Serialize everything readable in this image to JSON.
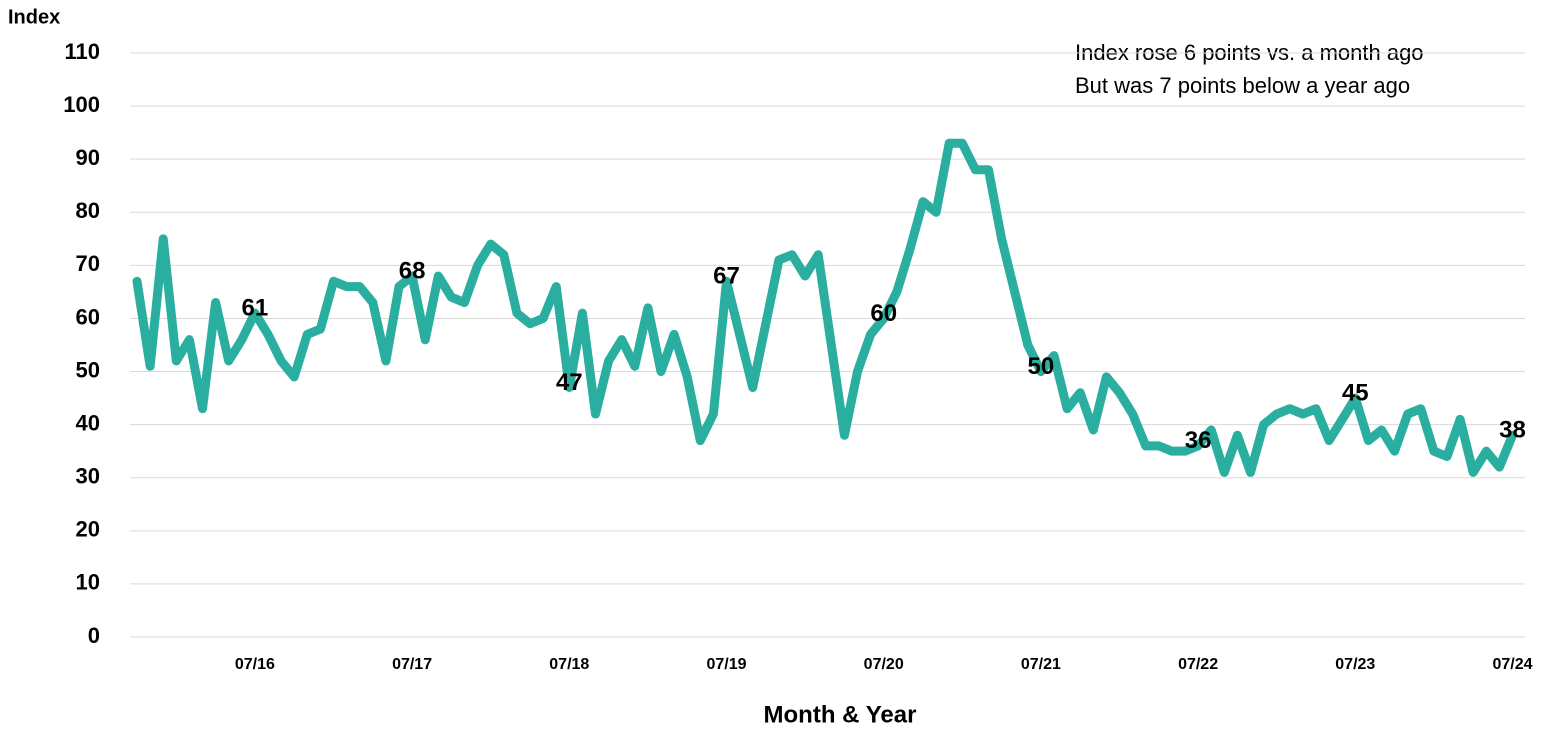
{
  "chart_data": {
    "type": "line",
    "y_label": "Index",
    "x_label": "Month & Year",
    "annotations": [
      "Index rose 6 points vs. a month ago",
      "But was 7 points below a year ago"
    ],
    "categories": [
      null,
      null,
      null,
      null,
      null,
      null,
      null,
      null,
      null,
      "07/16",
      null,
      null,
      null,
      null,
      null,
      null,
      null,
      null,
      null,
      null,
      null,
      "07/17",
      null,
      null,
      null,
      null,
      null,
      null,
      null,
      null,
      null,
      null,
      null,
      "07/18",
      null,
      null,
      null,
      null,
      null,
      null,
      null,
      null,
      null,
      null,
      null,
      "07/19",
      null,
      null,
      null,
      null,
      null,
      null,
      null,
      null,
      null,
      null,
      null,
      "07/20",
      null,
      null,
      null,
      null,
      null,
      null,
      null,
      null,
      null,
      null,
      null,
      "07/21",
      null,
      null,
      null,
      null,
      null,
      null,
      null,
      null,
      null,
      null,
      null,
      "07/22",
      null,
      null,
      null,
      null,
      null,
      null,
      null,
      null,
      null,
      null,
      null,
      "07/23",
      null,
      null,
      null,
      null,
      null,
      null,
      null,
      null,
      null,
      null,
      null,
      "07/24"
    ],
    "series": [
      {
        "color": "#2aae9f",
        "values": [
          67,
          51,
          75,
          52,
          56,
          43,
          63,
          52,
          56,
          61,
          57,
          52,
          49,
          57,
          58,
          67,
          66,
          66,
          63,
          52,
          66,
          68,
          56,
          68,
          64,
          63,
          70,
          74,
          72,
          61,
          59,
          60,
          66,
          47,
          61,
          42,
          52,
          56,
          51,
          62,
          50,
          57,
          49,
          37,
          42,
          67,
          57,
          47,
          59,
          71,
          72,
          68,
          72,
          55,
          38,
          50,
          57,
          60,
          65,
          73,
          82,
          80,
          93,
          93,
          88,
          88,
          75,
          65,
          55,
          50,
          53,
          43,
          46,
          39,
          49,
          46,
          42,
          36,
          36,
          35,
          35,
          36,
          39,
          31,
          38,
          31,
          40,
          42,
          43,
          42,
          43,
          37,
          41,
          45,
          37,
          39,
          35,
          42,
          43,
          35,
          34,
          41,
          31,
          35,
          32,
          38
        ],
        "value_labels": [
          null,
          null,
          null,
          null,
          null,
          null,
          null,
          null,
          null,
          "61",
          null,
          null,
          null,
          null,
          null,
          null,
          null,
          null,
          null,
          null,
          null,
          "68",
          null,
          null,
          null,
          null,
          null,
          null,
          null,
          null,
          null,
          null,
          null,
          "47",
          null,
          null,
          null,
          null,
          null,
          null,
          null,
          null,
          null,
          null,
          null,
          "67",
          null,
          null,
          null,
          null,
          null,
          null,
          null,
          null,
          null,
          null,
          null,
          "60",
          null,
          null,
          null,
          null,
          null,
          null,
          null,
          null,
          null,
          null,
          null,
          "50",
          null,
          null,
          null,
          null,
          null,
          null,
          null,
          null,
          null,
          null,
          null,
          "36",
          null,
          null,
          null,
          null,
          null,
          null,
          null,
          null,
          null,
          null,
          null,
          "45",
          null,
          null,
          null,
          null,
          null,
          null,
          null,
          null,
          null,
          null,
          null,
          "38"
        ]
      }
    ],
    "ylim": [
      0,
      110
    ],
    "yticks": [
      0,
      10,
      20,
      30,
      40,
      50,
      60,
      70,
      80,
      90,
      100,
      110
    ],
    "grid": true
  }
}
